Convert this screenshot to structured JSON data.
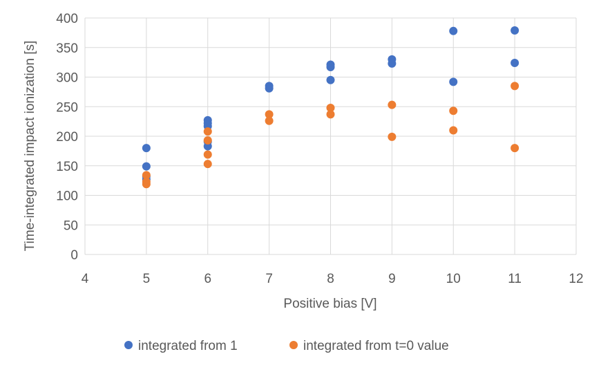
{
  "chart_data": {
    "type": "scatter",
    "title": "",
    "xlabel": "Positive bias [V]",
    "ylabel": "Time-integrated impact ionization [s]",
    "xlim": [
      4,
      12
    ],
    "ylim": [
      0,
      400
    ],
    "xticks": [
      4,
      5,
      6,
      7,
      8,
      9,
      10,
      11,
      12
    ],
    "yticks": [
      0,
      50,
      100,
      150,
      200,
      250,
      300,
      350,
      400
    ],
    "grid": true,
    "legend_position": "bottom",
    "series": [
      {
        "name": "integrated from 1",
        "color": "#4472C4",
        "points": [
          {
            "x": 5,
            "y": 180
          },
          {
            "x": 5,
            "y": 149
          },
          {
            "x": 5,
            "y": 132
          },
          {
            "x": 5,
            "y": 127
          },
          {
            "x": 6,
            "y": 227
          },
          {
            "x": 6,
            "y": 222
          },
          {
            "x": 6,
            "y": 217
          },
          {
            "x": 6,
            "y": 191
          },
          {
            "x": 6,
            "y": 183
          },
          {
            "x": 7,
            "y": 285
          },
          {
            "x": 7,
            "y": 281
          },
          {
            "x": 8,
            "y": 321
          },
          {
            "x": 8,
            "y": 317
          },
          {
            "x": 8,
            "y": 295
          },
          {
            "x": 9,
            "y": 330
          },
          {
            "x": 9,
            "y": 323
          },
          {
            "x": 10,
            "y": 378
          },
          {
            "x": 10,
            "y": 292
          },
          {
            "x": 11,
            "y": 379
          },
          {
            "x": 11,
            "y": 324
          }
        ]
      },
      {
        "name": "integrated from t=0 value",
        "color": "#ED7D31",
        "points": [
          {
            "x": 5,
            "y": 134
          },
          {
            "x": 5,
            "y": 123
          },
          {
            "x": 5,
            "y": 119
          },
          {
            "x": 6,
            "y": 208
          },
          {
            "x": 6,
            "y": 193
          },
          {
            "x": 6,
            "y": 169
          },
          {
            "x": 6,
            "y": 153
          },
          {
            "x": 7,
            "y": 237
          },
          {
            "x": 7,
            "y": 226
          },
          {
            "x": 8,
            "y": 248
          },
          {
            "x": 8,
            "y": 237
          },
          {
            "x": 9,
            "y": 253
          },
          {
            "x": 9,
            "y": 199
          },
          {
            "x": 10,
            "y": 243
          },
          {
            "x": 10,
            "y": 210
          },
          {
            "x": 11,
            "y": 285
          },
          {
            "x": 11,
            "y": 180
          }
        ]
      }
    ]
  }
}
